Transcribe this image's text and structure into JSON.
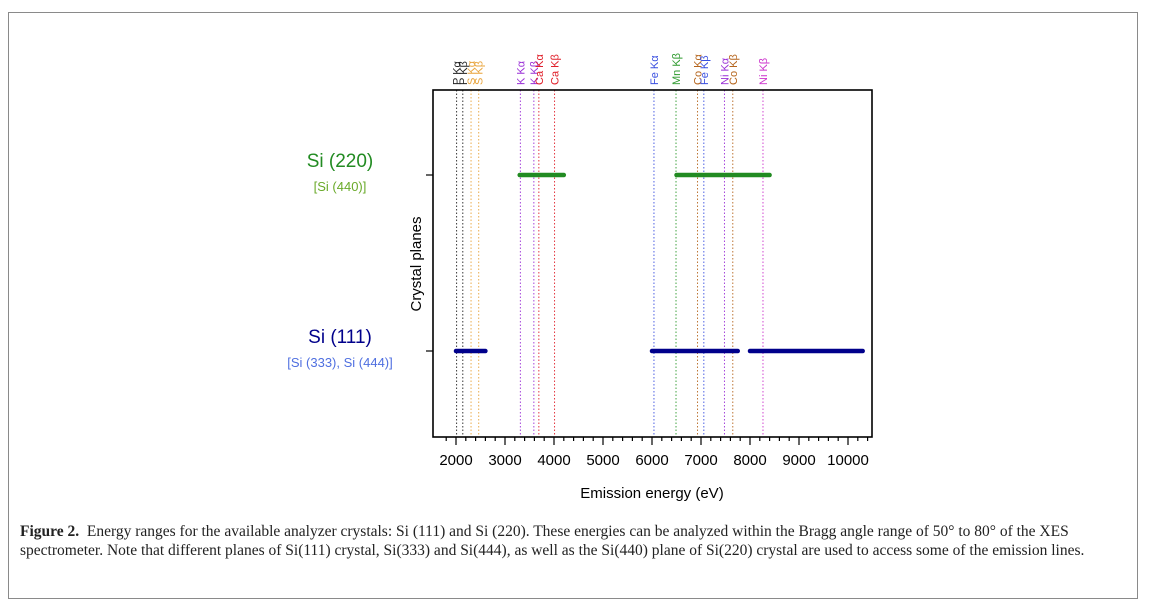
{
  "chart_data": {
    "type": "range",
    "xlabel": "Emission energy (eV)",
    "ylabel": "Crystal planes",
    "xlim": [
      1700,
      10500
    ],
    "x_ticks": [
      2000,
      3000,
      4000,
      5000,
      6000,
      7000,
      8000,
      9000,
      10000
    ],
    "categories": [
      {
        "name": "Si (111)",
        "sub": "[Si (333), Si (444)]",
        "color": "#00008b",
        "sub_color": "#4f6fe0"
      },
      {
        "name": "Si (220)",
        "sub": "[Si (440)]",
        "color": "#228b22",
        "sub_color": "#6aaa2a"
      }
    ],
    "ranges": [
      {
        "category": "Si (111)",
        "start": 2000,
        "end": 2600
      },
      {
        "category": "Si (111)",
        "start": 6000,
        "end": 7750
      },
      {
        "category": "Si (111)",
        "start": 8000,
        "end": 10300
      },
      {
        "category": "Si (220)",
        "start": 3300,
        "end": 4200
      },
      {
        "category": "Si (220)",
        "start": 6500,
        "end": 8400
      }
    ],
    "emission_lines": [
      {
        "label": "P Kα",
        "energy": 2013,
        "color": "#222222"
      },
      {
        "label": "P Kβ",
        "energy": 2139,
        "color": "#222222"
      },
      {
        "label": "S Kα",
        "energy": 2307,
        "color": "#e8a33a"
      },
      {
        "label": "S Kβ",
        "energy": 2464,
        "color": "#e8a33a"
      },
      {
        "label": "K Kα",
        "energy": 3313,
        "color": "#9a2fd6"
      },
      {
        "label": "K Kβ",
        "energy": 3589,
        "color": "#9a2fd6"
      },
      {
        "label": "Ca Kα",
        "energy": 3691,
        "color": "#e0202a"
      },
      {
        "label": "Ca Kβ",
        "energy": 4012,
        "color": "#e0202a"
      },
      {
        "label": "Fe Kα",
        "energy": 6040,
        "color": "#3a4fe0"
      },
      {
        "label": "Mn Kβ",
        "energy": 6490,
        "color": "#2e9a2e"
      },
      {
        "label": "Co Kα",
        "energy": 6930,
        "color": "#b5651d"
      },
      {
        "label": "Fe Kβ",
        "energy": 7058,
        "color": "#3a4fe0"
      },
      {
        "label": "Ni Kα",
        "energy": 7478,
        "color": "#9a2fd6"
      },
      {
        "label": "Co Kβ",
        "energy": 7649,
        "color": "#b5651d"
      },
      {
        "label": "Ni Kβ",
        "energy": 8265,
        "color": "#cc33cc"
      }
    ],
    "grid": false
  },
  "caption": {
    "label": "Figure 2.",
    "text": "Energy ranges for the available analyzer crystals: Si (111) and Si (220). These energies can be analyzed within the Bragg angle range of 50° to 80° of the XES spectrometer. Note that different planes of Si(111) crystal, Si(333) and Si(444), as well as the Si(440) plane of Si(220) crystal are used to access some of the emission lines."
  }
}
